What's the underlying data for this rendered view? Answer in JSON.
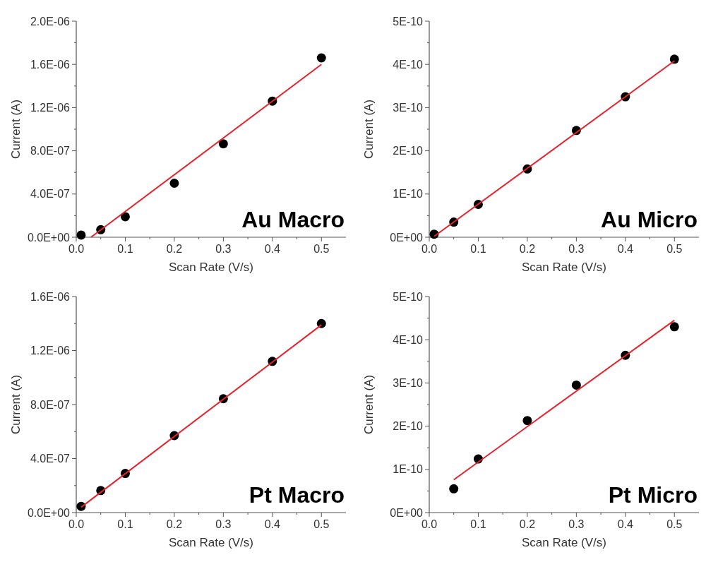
{
  "chart_data": [
    {
      "type": "scatter",
      "xlabel": "Scan Rate (V/s)",
      "ylabel": "Current (A)",
      "annotations": [
        "Au Macro"
      ],
      "xlim": [
        0,
        0.55
      ],
      "ylim": [
        0,
        2e-06
      ],
      "xticks": [
        {
          "value": 0,
          "label": "0.0"
        },
        {
          "value": 0.05,
          "label": null
        },
        {
          "value": 0.1,
          "label": "0.1"
        },
        {
          "value": 0.15,
          "label": null
        },
        {
          "value": 0.2,
          "label": "0.2"
        },
        {
          "value": 0.25,
          "label": null
        },
        {
          "value": 0.3,
          "label": "0.3"
        },
        {
          "value": 0.35,
          "label": null
        },
        {
          "value": 0.4,
          "label": "0.4"
        },
        {
          "value": 0.45,
          "label": null
        },
        {
          "value": 0.5,
          "label": "0.5"
        }
      ],
      "yticks": [
        {
          "value": 0,
          "label": "0.0E+00"
        },
        {
          "value": 2e-07,
          "label": null
        },
        {
          "value": 4e-07,
          "label": "4.0E-07"
        },
        {
          "value": 6e-07,
          "label": null
        },
        {
          "value": 8e-07,
          "label": "8.0E-07"
        },
        {
          "value": 1e-06,
          "label": null
        },
        {
          "value": 1.2e-06,
          "label": "1.2E-06"
        },
        {
          "value": 1.4e-06,
          "label": null
        },
        {
          "value": 1.6e-06,
          "label": "1.6E-06"
        },
        {
          "value": 1.8e-06,
          "label": null
        },
        {
          "value": 2e-06,
          "label": "2.0E-06"
        }
      ],
      "series": [
        {
          "marker": "circle",
          "color": "#000000",
          "x": [
            0.01,
            0.05,
            0.1,
            0.2,
            0.3,
            0.4,
            0.5
          ],
          "values": [
            2e-08,
            7e-08,
            1.9e-07,
            5e-07,
            8.65e-07,
            1.26e-06,
            1.66e-06
          ]
        },
        {
          "type": "line",
          "marker": "none",
          "color": "#e8202a",
          "x": [
            0.03,
            0.5
          ],
          "values": [
            0,
            1.6e-06
          ]
        }
      ]
    },
    {
      "type": "scatter",
      "xlabel": "Scan Rate (V/s)",
      "ylabel": "Current (A)",
      "annotations": [
        "Au Micro"
      ],
      "xlim": [
        0,
        0.55
      ],
      "ylim": [
        0,
        5e-10
      ],
      "xticks": [
        {
          "value": 0,
          "label": "0.0"
        },
        {
          "value": 0.05,
          "label": null
        },
        {
          "value": 0.1,
          "label": "0.1"
        },
        {
          "value": 0.15,
          "label": null
        },
        {
          "value": 0.2,
          "label": "0.2"
        },
        {
          "value": 0.25,
          "label": null
        },
        {
          "value": 0.3,
          "label": "0.3"
        },
        {
          "value": 0.35,
          "label": null
        },
        {
          "value": 0.4,
          "label": "0.4"
        },
        {
          "value": 0.45,
          "label": null
        },
        {
          "value": 0.5,
          "label": "0.5"
        }
      ],
      "yticks": [
        {
          "value": 0,
          "label": "0E+00"
        },
        {
          "value": 5e-11,
          "label": null
        },
        {
          "value": 1e-10,
          "label": "1E-10"
        },
        {
          "value": 1.5e-10,
          "label": null
        },
        {
          "value": 2e-10,
          "label": "2E-10"
        },
        {
          "value": 2.5e-10,
          "label": null
        },
        {
          "value": 3e-10,
          "label": "3E-10"
        },
        {
          "value": 3.5e-10,
          "label": null
        },
        {
          "value": 4e-10,
          "label": "4E-10"
        },
        {
          "value": 4.5e-10,
          "label": null
        },
        {
          "value": 5e-10,
          "label": "5E-10"
        }
      ],
      "series": [
        {
          "marker": "circle",
          "color": "#000000",
          "x": [
            0.01,
            0.05,
            0.1,
            0.2,
            0.3,
            0.4,
            0.5
          ],
          "values": [
            7e-12,
            3.5e-11,
            7.6e-11,
            1.58e-10,
            2.47e-10,
            3.25e-10,
            4.12e-10
          ]
        },
        {
          "type": "line",
          "marker": "none",
          "color": "#e8202a",
          "x": [
            0.01,
            0.5
          ],
          "values": [
            2e-12,
            4.08e-10
          ]
        }
      ]
    },
    {
      "type": "scatter",
      "xlabel": "Scan Rate (V/s)",
      "ylabel": "Current (A)",
      "annotations": [
        "Pt Macro"
      ],
      "xlim": [
        0,
        0.55
      ],
      "ylim": [
        0,
        1.6e-06
      ],
      "xticks": [
        {
          "value": 0,
          "label": "0.0"
        },
        {
          "value": 0.05,
          "label": null
        },
        {
          "value": 0.1,
          "label": "0.1"
        },
        {
          "value": 0.15,
          "label": null
        },
        {
          "value": 0.2,
          "label": "0.2"
        },
        {
          "value": 0.25,
          "label": null
        },
        {
          "value": 0.3,
          "label": "0.3"
        },
        {
          "value": 0.35,
          "label": null
        },
        {
          "value": 0.4,
          "label": "0.4"
        },
        {
          "value": 0.45,
          "label": null
        },
        {
          "value": 0.5,
          "label": "0.5"
        }
      ],
      "yticks": [
        {
          "value": 0,
          "label": "0.0E+00"
        },
        {
          "value": 2e-07,
          "label": null
        },
        {
          "value": 4e-07,
          "label": "4.0E-07"
        },
        {
          "value": 6e-07,
          "label": null
        },
        {
          "value": 8e-07,
          "label": "8.0E-07"
        },
        {
          "value": 1e-06,
          "label": null
        },
        {
          "value": 1.2e-06,
          "label": "1.2E-06"
        },
        {
          "value": 1.4e-06,
          "label": null
        },
        {
          "value": 1.6e-06,
          "label": "1.6E-06"
        }
      ],
      "series": [
        {
          "marker": "circle",
          "color": "#000000",
          "x": [
            0.01,
            0.05,
            0.1,
            0.2,
            0.3,
            0.4,
            0.5
          ],
          "values": [
            4.6e-08,
            1.63e-07,
            2.9e-07,
            5.7e-07,
            8.43e-07,
            1.12e-06,
            1.4e-06
          ]
        },
        {
          "type": "line",
          "marker": "none",
          "color": "#e8202a",
          "x": [
            0.01,
            0.5
          ],
          "values": [
            4e-08,
            1.39e-06
          ]
        }
      ]
    },
    {
      "type": "scatter",
      "xlabel": "Scan Rate (V/s)",
      "ylabel": "Current (A)",
      "annotations": [
        "Pt Micro"
      ],
      "xlim": [
        0,
        0.55
      ],
      "ylim": [
        0,
        5e-10
      ],
      "xticks": [
        {
          "value": 0,
          "label": "0.0"
        },
        {
          "value": 0.05,
          "label": null
        },
        {
          "value": 0.1,
          "label": "0.1"
        },
        {
          "value": 0.15,
          "label": null
        },
        {
          "value": 0.2,
          "label": "0.2"
        },
        {
          "value": 0.25,
          "label": null
        },
        {
          "value": 0.3,
          "label": "0.3"
        },
        {
          "value": 0.35,
          "label": null
        },
        {
          "value": 0.4,
          "label": "0.4"
        },
        {
          "value": 0.45,
          "label": null
        },
        {
          "value": 0.5,
          "label": "0.5"
        }
      ],
      "yticks": [
        {
          "value": 0,
          "label": "0E+00"
        },
        {
          "value": 5e-11,
          "label": null
        },
        {
          "value": 1e-10,
          "label": "1E-10"
        },
        {
          "value": 1.5e-10,
          "label": null
        },
        {
          "value": 2e-10,
          "label": "2E-10"
        },
        {
          "value": 2.5e-10,
          "label": null
        },
        {
          "value": 3e-10,
          "label": "3E-10"
        },
        {
          "value": 3.5e-10,
          "label": null
        },
        {
          "value": 4e-10,
          "label": "4E-10"
        },
        {
          "value": 4.5e-10,
          "label": null
        },
        {
          "value": 5e-10,
          "label": "5E-10"
        }
      ],
      "series": [
        {
          "marker": "circle",
          "color": "#000000",
          "x": [
            0.05,
            0.1,
            0.2,
            0.3,
            0.4,
            0.5
          ],
          "values": [
            5.5e-11,
            1.24e-10,
            2.13e-10,
            2.95e-10,
            3.64e-10,
            4.3e-10
          ]
        },
        {
          "type": "line",
          "marker": "none",
          "color": "#e8202a",
          "x": [
            0.05,
            0.5
          ],
          "values": [
            7.6e-11,
            4.45e-10
          ]
        }
      ]
    }
  ]
}
